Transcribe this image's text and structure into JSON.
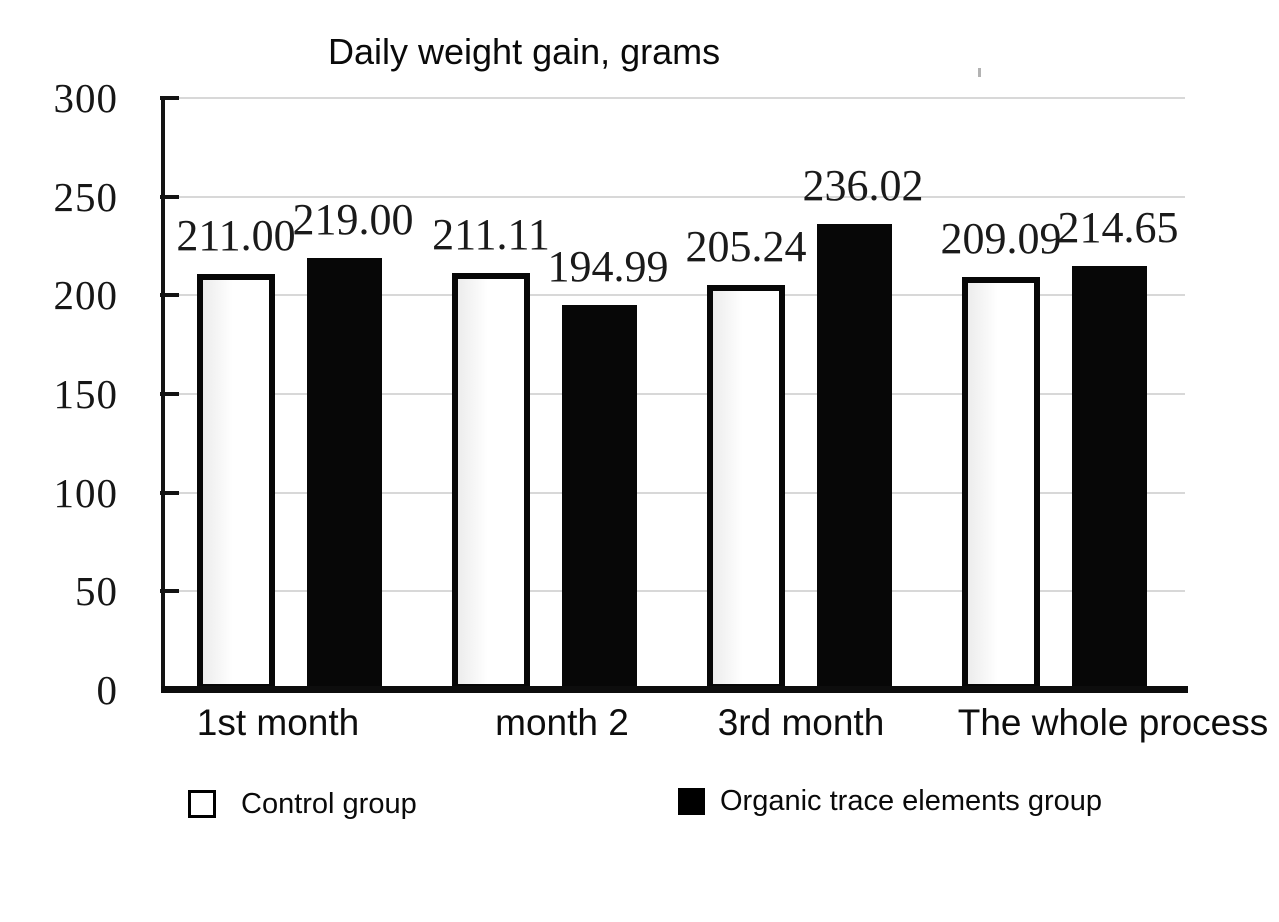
{
  "page": {
    "background": "#ffffff"
  },
  "chart_data": {
    "type": "bar",
    "title": "Daily weight gain, grams",
    "categories": [
      "1st month",
      "month 2",
      "3rd month",
      "The whole process"
    ],
    "series": [
      {
        "name": "Control group",
        "swatch": "white",
        "values": [
          211.0,
          211.11,
          205.24,
          209.09
        ],
        "value_labels": [
          "211.00",
          "211.11",
          "205.24",
          "209.09"
        ]
      },
      {
        "name": "Organic trace elements group",
        "swatch": "black",
        "values": [
          219.0,
          194.99,
          236.02,
          214.65
        ],
        "value_labels": [
          "219.00",
          "194.99",
          "236.02",
          "214.65"
        ]
      }
    ],
    "xlabel": "",
    "ylabel": "",
    "ylim": [
      0,
      300
    ],
    "ytick_step": 50,
    "yticks": [
      {
        "value": 300,
        "label": "300"
      },
      {
        "value": 250,
        "label": "250"
      },
      {
        "value": 200,
        "label": "200"
      },
      {
        "value": 150,
        "label": "150"
      },
      {
        "value": 100,
        "label": "100"
      },
      {
        "value": 50,
        "label": "50"
      },
      {
        "value": 0,
        "label": "0"
      }
    ],
    "grid": true,
    "legend_position": "bottom",
    "colors": {
      "bar_fill_control": "#ffffff",
      "bar_fill_organic": "#070707",
      "bar_outline": "#0a0a0a",
      "gridline": "#d8d8d8",
      "axis": "#131313",
      "text": "#111111"
    }
  }
}
